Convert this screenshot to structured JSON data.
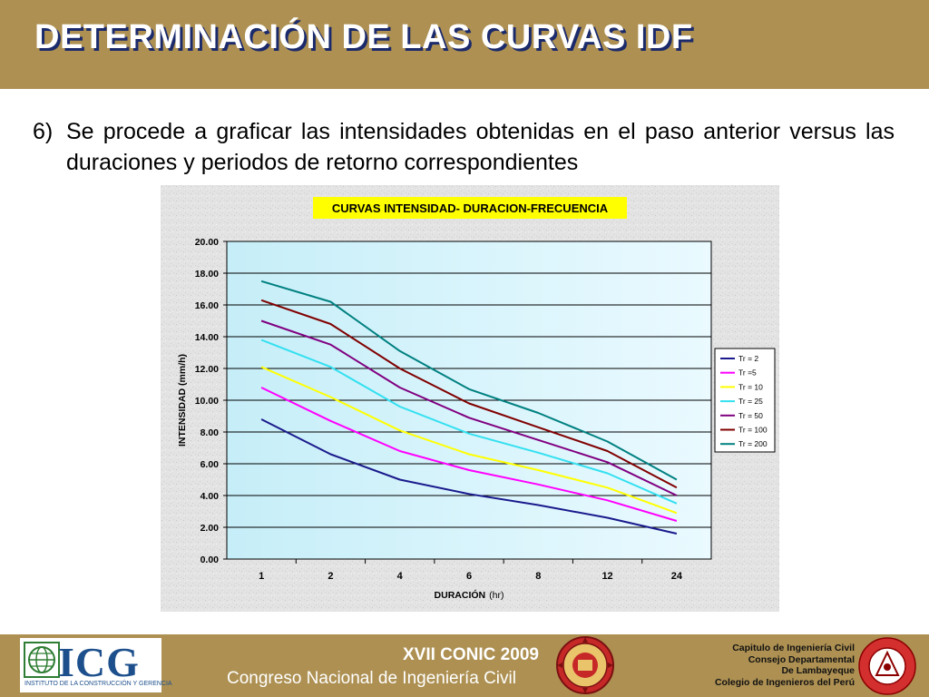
{
  "slide": {
    "title": "DETERMINACIÓN DE LAS CURVAS IDF",
    "item_number": "6)",
    "item_text": "Se procede a graficar las intensidades obtenidas en el paso anterior versus las duraciones y periodos de retorno correspondientes"
  },
  "chart_data": {
    "type": "line",
    "title": "CURVAS INTENSIDAD- DURACION-FRECUENCIA",
    "xlabel": "DURACIÓN",
    "xlabel_unit": "(hr)",
    "ylabel": "INTENSIDAD (mm/h)",
    "categories": [
      "1",
      "2",
      "4",
      "6",
      "8",
      "12",
      "24"
    ],
    "ylim": [
      0,
      20
    ],
    "yticks": [
      "0.00",
      "2.00",
      "4.00",
      "6.00",
      "8.00",
      "10.00",
      "12.00",
      "14.00",
      "16.00",
      "18.00",
      "20.00"
    ],
    "grid": true,
    "legend_position": "right",
    "series": [
      {
        "name": "Tr = 2",
        "color": "#1a1a8c",
        "values": [
          8.8,
          6.6,
          5.0,
          4.1,
          3.4,
          2.6,
          1.6
        ]
      },
      {
        "name": "Tr =5",
        "color": "#ff00ff",
        "values": [
          10.8,
          8.7,
          6.8,
          5.6,
          4.7,
          3.7,
          2.4
        ]
      },
      {
        "name": "Tr = 10",
        "color": "#ffff00",
        "values": [
          12.1,
          10.2,
          8.1,
          6.6,
          5.6,
          4.5,
          2.9
        ]
      },
      {
        "name": "Tr = 25",
        "color": "#33e0f0",
        "values": [
          13.8,
          12.1,
          9.6,
          7.9,
          6.7,
          5.4,
          3.5
        ]
      },
      {
        "name": "Tr = 50",
        "color": "#800080",
        "values": [
          15.0,
          13.5,
          10.8,
          8.9,
          7.5,
          6.1,
          4.0
        ]
      },
      {
        "name": "Tr = 100",
        "color": "#800000",
        "values": [
          16.3,
          14.8,
          12.0,
          9.8,
          8.3,
          6.8,
          4.5
        ]
      },
      {
        "name": "Tr = 200",
        "color": "#008080",
        "values": [
          17.5,
          16.2,
          13.1,
          10.7,
          9.2,
          7.4,
          5.0
        ]
      }
    ]
  },
  "footer": {
    "logo_text": "ICG",
    "logo_subtitle": "INSTITUTO DE LA CONSTRUCCIÓN Y GERENCIA",
    "event_title": "XVII  CONIC 2009",
    "event_subtitle": "Congreso Nacional de Ingeniería Civil",
    "chapter_lines": [
      "Capitulo de Ingeniería Civil",
      "Consejo Departamental",
      "De Lambayeque",
      "Colegio de Ingenieros del Perú"
    ]
  },
  "colors": {
    "header_bg": "#ad9052",
    "title_text": "#ffffff",
    "title_shadow": "#1b2a6b",
    "plot_bg": "#d8f4fb",
    "chart_title_bg": "#ffff00"
  }
}
